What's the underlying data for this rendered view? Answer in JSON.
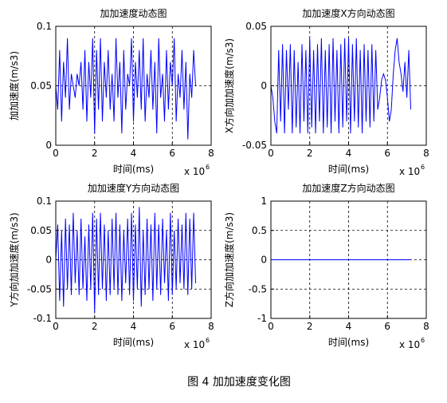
{
  "chart_data": [
    {
      "type": "line",
      "title": "加加速度动态图",
      "xlabel": "时间(ms)",
      "ylabel": "加加速度(m/s3)",
      "x_exponent": {
        "base": "x 10",
        "power": "6"
      },
      "x": [
        0,
        0.1,
        0.2,
        0.3,
        0.4,
        0.5,
        0.6,
        0.7,
        0.8,
        0.9,
        1,
        1.1,
        1.2,
        1.3,
        1.4,
        1.5,
        1.6,
        1.7,
        1.8,
        1.9,
        2,
        2.1,
        2.2,
        2.3,
        2.4,
        2.5,
        2.6,
        2.7,
        2.8,
        2.9,
        3,
        3.1,
        3.2,
        3.3,
        3.4,
        3.5,
        3.6,
        3.7,
        3.8,
        3.9,
        4,
        4.1,
        4.2,
        4.3,
        4.4,
        4.5,
        4.6,
        4.7,
        4.8,
        4.9,
        5,
        5.1,
        5.2,
        5.3,
        5.4,
        5.5,
        5.6,
        5.7,
        5.8,
        5.9,
        6,
        6.1,
        6.2,
        6.3,
        6.4,
        6.5,
        6.6,
        6.7,
        6.8,
        6.9,
        7,
        7.1,
        7.2
      ],
      "series": [
        {
          "color": "#0000ff",
          "values": [
            0.05,
            0.03,
            0.08,
            0.02,
            0.07,
            0.04,
            0.09,
            0.03,
            0.06,
            0.05,
            0.04,
            0.06,
            0.05,
            0.07,
            0.03,
            0.08,
            0.02,
            0.07,
            0.04,
            0.09,
            0.01,
            0.08,
            0.03,
            0.09,
            0.02,
            0.07,
            0.04,
            0.08,
            0.03,
            0.06,
            0.02,
            0.09,
            0.04,
            0.07,
            0.01,
            0.08,
            0.03,
            0.06,
            0.05,
            0.09,
            0.02,
            0.07,
            0.04,
            0.08,
            0.03,
            0.09,
            0.02,
            0.06,
            0.04,
            0.08,
            0.03,
            0.07,
            0.01,
            0.09,
            0.04,
            0.06,
            0.02,
            0.08,
            0.03,
            0.07,
            0.05,
            0.09,
            0.02,
            0.06,
            0.04,
            0.08,
            0.03,
            0.07,
            0.005,
            0.06,
            0.04,
            0.08,
            0.05
          ]
        }
      ],
      "xlim": [
        0,
        8
      ],
      "ylim": [
        0,
        0.1
      ],
      "xticks": [
        0,
        2,
        4,
        6,
        8
      ],
      "yticks": [
        0,
        0.05,
        0.1
      ],
      "grid": true
    },
    {
      "type": "line",
      "title": "加加速度X方向动态图",
      "xlabel": "时间(ms)",
      "ylabel": "X方向加加速度(m/s3)",
      "x_exponent": {
        "base": "x 10",
        "power": "6"
      },
      "x": [
        0,
        0.1,
        0.2,
        0.3,
        0.4,
        0.5,
        0.6,
        0.7,
        0.8,
        0.9,
        1,
        1.1,
        1.2,
        1.3,
        1.4,
        1.5,
        1.6,
        1.7,
        1.8,
        1.9,
        2,
        2.1,
        2.2,
        2.3,
        2.4,
        2.5,
        2.6,
        2.7,
        2.8,
        2.9,
        3,
        3.1,
        3.2,
        3.3,
        3.4,
        3.5,
        3.6,
        3.7,
        3.8,
        3.9,
        4,
        4.1,
        4.2,
        4.3,
        4.4,
        4.5,
        4.6,
        4.7,
        4.8,
        4.9,
        5,
        5.1,
        5.2,
        5.3,
        5.4,
        5.5,
        5.6,
        5.7,
        5.8,
        5.9,
        6,
        6.1,
        6.2,
        6.3,
        6.4,
        6.5,
        6.6,
        6.7,
        6.8,
        6.9,
        7,
        7.1,
        7.2
      ],
      "series": [
        {
          "color": "#0000ff",
          "values": [
            0,
            -0.01,
            -0.03,
            -0.04,
            0.03,
            -0.03,
            0.035,
            -0.04,
            0.03,
            -0.02,
            0.035,
            -0.04,
            0.03,
            -0.035,
            0.02,
            -0.04,
            0.035,
            -0.03,
            0.03,
            -0.04,
            0.04,
            -0.035,
            0.03,
            -0.04,
            0.035,
            -0.03,
            0.04,
            -0.04,
            0.03,
            -0.035,
            0.035,
            -0.04,
            0.04,
            -0.03,
            0.03,
            -0.04,
            0.035,
            -0.035,
            0.04,
            -0.03,
            0.04,
            -0.04,
            0.035,
            -0.03,
            0.04,
            -0.035,
            0.03,
            -0.04,
            0.035,
            -0.03,
            0.03,
            -0.035,
            0.035,
            -0.03,
            0.03,
            -0.02,
            -0.01,
            0.005,
            0.01,
            0.005,
            -0.01,
            -0.03,
            -0.02,
            0.01,
            0.03,
            0.04,
            0.02,
            0.01,
            -0.005,
            0.02,
            -0.01,
            0.03,
            -0.02
          ]
        }
      ],
      "xlim": [
        0,
        8
      ],
      "ylim": [
        -0.05,
        0.05
      ],
      "xticks": [
        0,
        2,
        4,
        6,
        8
      ],
      "yticks": [
        -0.05,
        0,
        0.05
      ],
      "grid": true
    },
    {
      "type": "line",
      "title": "加加速度Y方向动态图",
      "xlabel": "时间(ms)",
      "ylabel": "Y方向加加速度(m/s3)",
      "x_exponent": {
        "base": "x 10",
        "power": "6"
      },
      "x": [
        0,
        0.1,
        0.2,
        0.3,
        0.4,
        0.5,
        0.6,
        0.7,
        0.8,
        0.9,
        1,
        1.1,
        1.2,
        1.3,
        1.4,
        1.5,
        1.6,
        1.7,
        1.8,
        1.9,
        2,
        2.1,
        2.2,
        2.3,
        2.4,
        2.5,
        2.6,
        2.7,
        2.8,
        2.9,
        3,
        3.1,
        3.2,
        3.3,
        3.4,
        3.5,
        3.6,
        3.7,
        3.8,
        3.9,
        4,
        4.1,
        4.2,
        4.3,
        4.4,
        4.5,
        4.6,
        4.7,
        4.8,
        4.9,
        5,
        5.1,
        5.2,
        5.3,
        5.4,
        5.5,
        5.6,
        5.7,
        5.8,
        5.9,
        6,
        6.1,
        6.2,
        6.3,
        6.4,
        6.5,
        6.6,
        6.7,
        6.8,
        6.9,
        7,
        7.1,
        7.2
      ],
      "series": [
        {
          "color": "#0000ff",
          "values": [
            0,
            0.06,
            -0.07,
            0.05,
            -0.08,
            0.07,
            -0.05,
            0.06,
            -0.06,
            0.08,
            -0.04,
            0.05,
            -0.06,
            0.07,
            -0.05,
            0.04,
            -0.07,
            0.06,
            -0.05,
            0.08,
            -0.09,
            0.07,
            -0.06,
            0.08,
            -0.05,
            0.06,
            -0.07,
            0.05,
            -0.06,
            0.07,
            -0.05,
            0.08,
            -0.06,
            0.06,
            -0.07,
            0.05,
            -0.04,
            0.07,
            -0.06,
            0.08,
            -0.07,
            0.06,
            -0.05,
            0.09,
            -0.08,
            0.05,
            -0.06,
            0.07,
            -0.05,
            0.06,
            -0.07,
            0.08,
            -0.05,
            0.06,
            -0.06,
            0.07,
            -0.04,
            0.05,
            -0.07,
            0.08,
            -0.06,
            0.05,
            -0.05,
            0.07,
            -0.04,
            0.06,
            -0.05,
            0.08,
            -0.06,
            0.07,
            -0.05,
            0.08,
            -0.04
          ]
        }
      ],
      "xlim": [
        0,
        8
      ],
      "ylim": [
        -0.1,
        0.1
      ],
      "xticks": [
        0,
        2,
        4,
        6,
        8
      ],
      "yticks": [
        -0.1,
        -0.05,
        0,
        0.05,
        0.1
      ],
      "grid": true
    },
    {
      "type": "line",
      "title": "加加速度Z方向动态图",
      "xlabel": "时间(ms)",
      "ylabel": "Z方向加加速度(m/s3)",
      "x_exponent": {
        "base": "x 10",
        "power": "6"
      },
      "x": [
        0,
        7.2
      ],
      "series": [
        {
          "color": "#0000ff",
          "values": [
            0,
            0
          ]
        }
      ],
      "xlim": [
        0,
        8
      ],
      "ylim": [
        -1,
        1
      ],
      "xticks": [
        0,
        2,
        4,
        6,
        8
      ],
      "yticks": [
        -1,
        -0.5,
        0,
        0.5,
        1
      ],
      "grid": true
    }
  ],
  "figure_caption": "图 4  加加速度变化图"
}
